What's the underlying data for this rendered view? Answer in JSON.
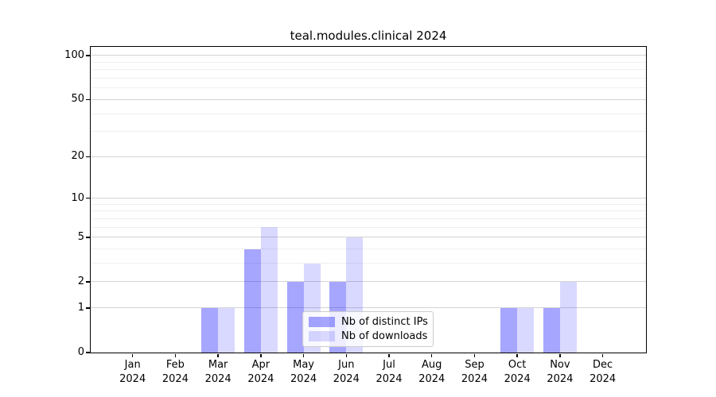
{
  "chart_data": {
    "type": "bar",
    "title": "teal.modules.clinical 2024",
    "categories": [
      "Jan",
      "Feb",
      "Mar",
      "Apr",
      "May",
      "Jun",
      "Jul",
      "Aug",
      "Sep",
      "Oct",
      "Nov",
      "Dec"
    ],
    "x_tick_second_line": "2024",
    "series": [
      {
        "name": "Nb of distinct IPs",
        "color": "rgba(0,0,255,0.35)",
        "values": [
          0,
          0,
          1,
          4,
          2,
          2,
          0,
          0,
          0,
          1,
          1,
          0
        ]
      },
      {
        "name": "Nb of downloads",
        "color": "rgba(0,0,255,0.15)",
        "values": [
          0,
          0,
          1,
          6,
          3,
          5,
          0,
          0,
          0,
          1,
          2,
          0
        ]
      }
    ],
    "xlabel": "",
    "ylabel": "",
    "y_scale": "log1p",
    "y_ticks": [
      0,
      1,
      2,
      5,
      10,
      20,
      50,
      100
    ],
    "y_minor_ticks": [
      3,
      4,
      6,
      7,
      8,
      9,
      30,
      40,
      60,
      70,
      80,
      90
    ],
    "ylim": [
      0,
      115
    ],
    "grid": true,
    "legend_position": "lower center",
    "colors": {
      "major_grid": "#d4d4d4",
      "minor_grid": "#f0f0f0",
      "axis": "#000000",
      "background": "#ffffff"
    }
  }
}
